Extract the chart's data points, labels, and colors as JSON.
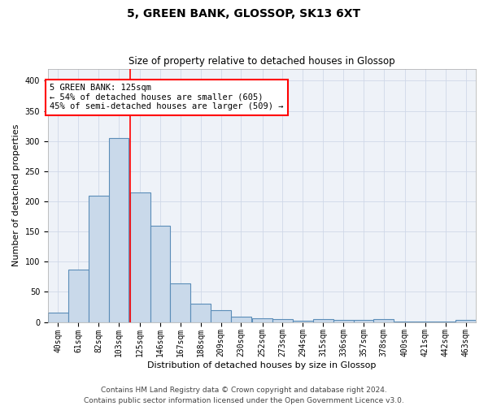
{
  "title": "5, GREEN BANK, GLOSSOP, SK13 6XT",
  "subtitle": "Size of property relative to detached houses in Glossop",
  "xlabel": "Distribution of detached houses by size in Glossop",
  "ylabel": "Number of detached properties",
  "bar_color": "#c9d9ea",
  "bar_edge_color": "#5b8db8",
  "bar_edge_width": 0.8,
  "grid_color": "#d0d8e8",
  "background_color": "#eef2f8",
  "redline_x": 125,
  "annotation_line1": "5 GREEN BANK: 125sqm",
  "annotation_line2": "← 54% of detached houses are smaller (605)",
  "annotation_line3": "45% of semi-detached houses are larger (509) →",
  "annotation_box_color": "white",
  "annotation_border_color": "red",
  "categories": [
    "40sqm",
    "61sqm",
    "82sqm",
    "103sqm",
    "125sqm",
    "146sqm",
    "167sqm",
    "188sqm",
    "209sqm",
    "230sqm",
    "252sqm",
    "273sqm",
    "294sqm",
    "315sqm",
    "336sqm",
    "357sqm",
    "378sqm",
    "400sqm",
    "421sqm",
    "442sqm",
    "463sqm"
  ],
  "values": [
    15,
    87,
    210,
    305,
    215,
    160,
    64,
    31,
    19,
    9,
    6,
    5,
    2,
    5,
    4,
    4,
    5,
    1,
    1,
    1,
    4
  ],
  "bin_width": 21,
  "bin_starts": [
    40,
    61,
    82,
    103,
    125,
    146,
    167,
    188,
    209,
    230,
    252,
    273,
    294,
    315,
    336,
    357,
    378,
    400,
    421,
    442,
    463
  ],
  "ylim": [
    0,
    420
  ],
  "yticks": [
    0,
    50,
    100,
    150,
    200,
    250,
    300,
    350,
    400
  ],
  "footer_line1": "Contains HM Land Registry data © Crown copyright and database right 2024.",
  "footer_line2": "Contains public sector information licensed under the Open Government Licence v3.0.",
  "title_fontsize": 10,
  "subtitle_fontsize": 8.5,
  "axis_label_fontsize": 8,
  "tick_fontsize": 7,
  "annotation_fontsize": 7.5,
  "footer_fontsize": 6.5
}
